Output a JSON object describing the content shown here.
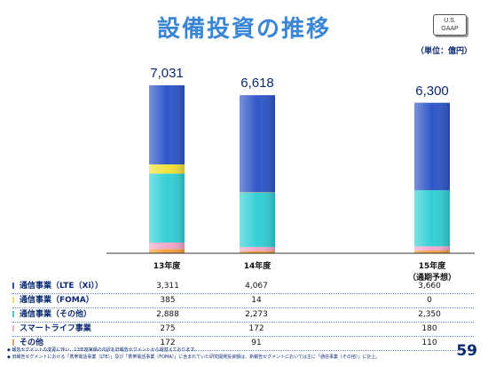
{
  "header": {
    "title": "設備投資の推移",
    "gaap_line1": "U.S.",
    "gaap_line2": "GAAP",
    "unit": "（単位：億円）"
  },
  "chart_data": {
    "type": "bar",
    "stacked": true,
    "categories": [
      "13年度",
      "14年度",
      "15年度（通期予想）"
    ],
    "category_lines": [
      [
        "13年度"
      ],
      [
        "14年度"
      ],
      [
        "15年度",
        "（通期予想）"
      ]
    ],
    "totals": [
      "7,031",
      "6,618",
      "6,300"
    ],
    "series": [
      {
        "name": "その他",
        "color": "#f3a13a",
        "values": [
          172,
          91,
          110
        ],
        "display": [
          "172",
          "91",
          "110"
        ]
      },
      {
        "name": "スマートライフ事業",
        "color": "#f2a8c8",
        "values": [
          275,
          172,
          180
        ],
        "display": [
          "275",
          "172",
          "180"
        ]
      },
      {
        "name": "通信事業（その他）",
        "color": "#33d0d6",
        "values": [
          2888,
          2273,
          2350
        ],
        "display": [
          "2,888",
          "2,273",
          "2,350"
        ]
      },
      {
        "name": "通信事業（FOMA）",
        "color": "#f2e23a",
        "values": [
          385,
          14,
          0
        ],
        "display": [
          "385",
          "14",
          "0"
        ]
      },
      {
        "name": "通信事業（LTE（Xi））",
        "color": "#2f57c8",
        "values": [
          3311,
          4067,
          3660
        ],
        "display": [
          "3,311",
          "4,067",
          "3,660"
        ]
      }
    ],
    "ylim": [
      0,
      7031
    ]
  },
  "table_rows_order": [
    4,
    3,
    2,
    1,
    0
  ],
  "footnotes": [
    "◆ 報告セグメントの変更に伴い、13年度実績の内訳を旧報告セグメントから組替えております。",
    "◆ 旧報告セグメントにおける「携帯電話事業（LTE）」及び「携帯電話事業（FOMA）」に含まれていた研究開発投資額は、新報告セグメントにおいては主に「通信事業（その他）」に計上。"
  ],
  "page_number": "59"
}
